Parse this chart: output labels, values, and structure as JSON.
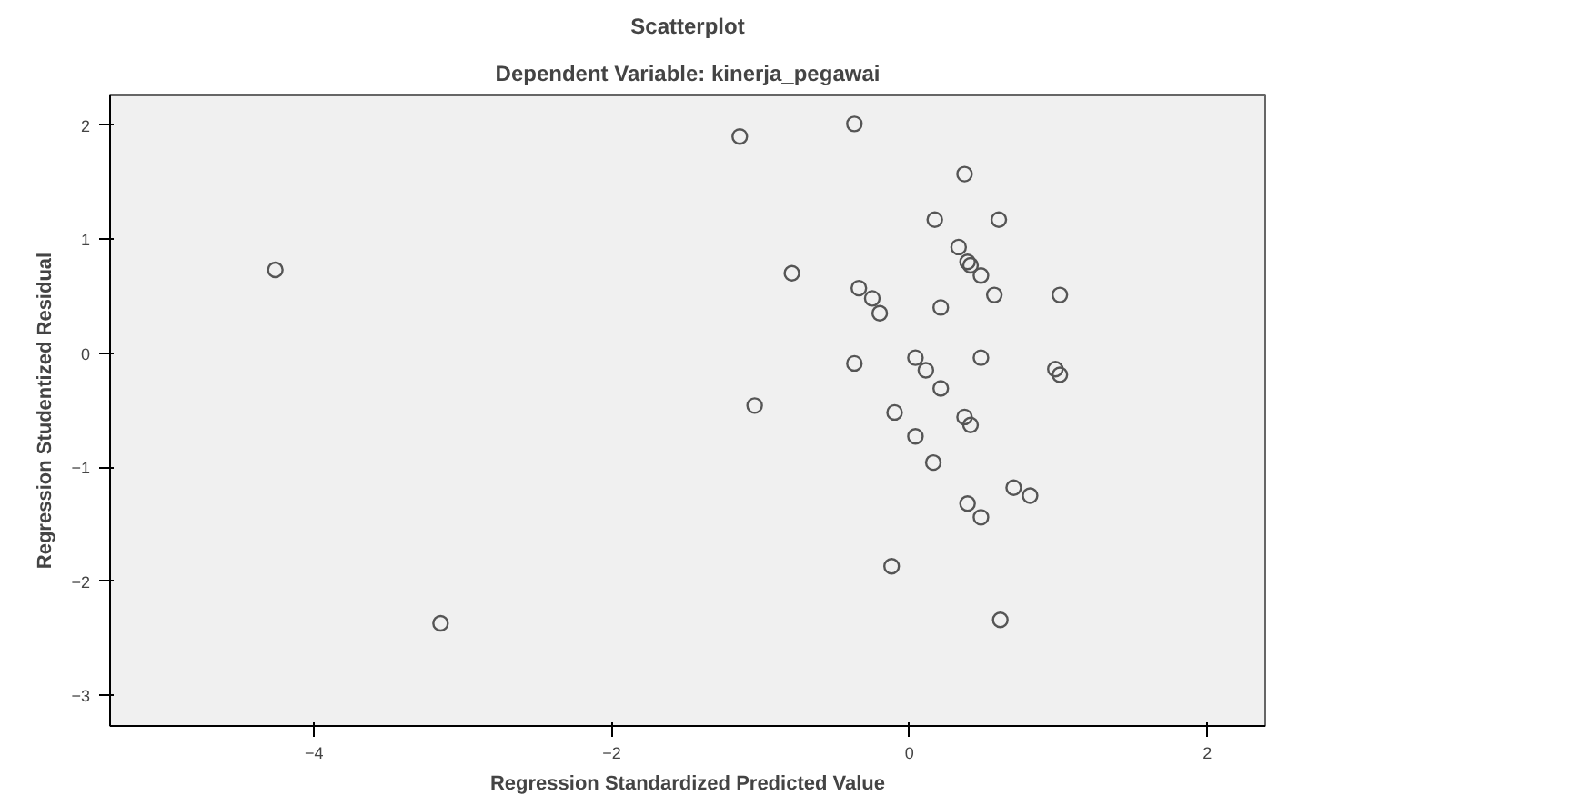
{
  "chart_data": {
    "type": "scatter",
    "title": "Scatterplot",
    "subtitle": "Dependent Variable: kinerja_pegawai",
    "xlabel": "Regression Standardized Predicted Value",
    "ylabel": "Regression Studentized Residual",
    "xlim": [
      -5.37,
      2.39
    ],
    "ylim": [
      -3.27,
      2.26
    ],
    "xticks": [
      -4,
      -2,
      0,
      2
    ],
    "yticks": [
      -3,
      -2,
      -1,
      0,
      1,
      2
    ],
    "grid": false,
    "marker": "circle",
    "series": [
      {
        "color": "#555555",
        "x": [
          -4.26,
          -3.15,
          -1.14,
          -0.37,
          -0.79,
          -1.04,
          -0.34,
          -0.25,
          -0.2,
          -0.37,
          0.37,
          0.17,
          0.6,
          0.33,
          0.39,
          0.41,
          0.48,
          0.57,
          0.21,
          1.01,
          0.04,
          0.11,
          0.48,
          0.21,
          0.98,
          1.01,
          -0.1,
          0.37,
          0.41,
          0.04,
          0.16,
          0.7,
          0.81,
          0.39,
          0.48,
          -0.12,
          0.61
        ],
        "values": [
          0.73,
          -2.37,
          1.9,
          2.01,
          0.7,
          -0.46,
          0.57,
          0.48,
          0.35,
          -0.09,
          1.57,
          1.17,
          1.17,
          0.93,
          0.8,
          0.77,
          0.68,
          0.51,
          0.4,
          0.51,
          -0.04,
          -0.15,
          -0.04,
          -0.31,
          -0.14,
          -0.19,
          -0.52,
          -0.56,
          -0.63,
          -0.73,
          -0.96,
          -1.18,
          -1.25,
          -1.32,
          -1.44,
          -1.87,
          -2.34
        ]
      }
    ]
  }
}
